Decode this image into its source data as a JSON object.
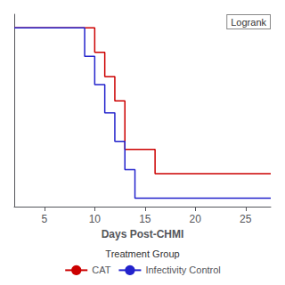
{
  "chart_data": {
    "type": "step",
    "xlabel": "Days Post-CHMI",
    "annotations": [
      "Logrank"
    ],
    "legend_title": "Treatment Group",
    "legend": "bottom",
    "grid": false,
    "tick_labels": "x",
    "xlim": [
      2,
      27.5
    ],
    "xticks": [
      5,
      10,
      15,
      20,
      25
    ],
    "ylim": [
      -0.05,
      1.08
    ],
    "yticks": [],
    "series": [
      {
        "name": "CAT",
        "color": "#cc0000",
        "x": [
          2,
          10,
          10,
          11,
          11,
          12,
          12,
          13,
          13,
          16,
          16,
          27.5
        ],
        "values": [
          1.0,
          1.0,
          0.857,
          0.857,
          0.714,
          0.714,
          0.571,
          0.571,
          0.286,
          0.286,
          0.143,
          0.143
        ]
      },
      {
        "name": "Infectivity Control",
        "color": "#2222cc",
        "x": [
          2,
          9,
          9,
          10,
          10,
          11,
          11,
          12,
          12,
          13,
          13,
          14,
          14,
          27.5
        ],
        "values": [
          1.0,
          1.0,
          0.833,
          0.833,
          0.667,
          0.667,
          0.5,
          0.5,
          0.333,
          0.333,
          0.167,
          0.167,
          0.0,
          0.0
        ]
      }
    ]
  }
}
